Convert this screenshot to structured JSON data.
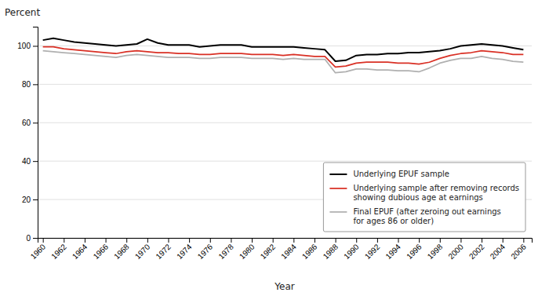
{
  "chart_data": {
    "type": "line",
    "xlabel": "Year",
    "ylabel": "Percent",
    "x": [
      1960,
      1961,
      1962,
      1963,
      1964,
      1965,
      1966,
      1967,
      1968,
      1969,
      1970,
      1971,
      1972,
      1973,
      1974,
      1975,
      1976,
      1977,
      1978,
      1979,
      1980,
      1981,
      1982,
      1983,
      1984,
      1985,
      1986,
      1987,
      1988,
      1989,
      1990,
      1991,
      1992,
      1993,
      1994,
      1995,
      1996,
      1997,
      1998,
      1999,
      2000,
      2001,
      2002,
      2003,
      2004,
      2005,
      2006
    ],
    "series": [
      {
        "name": "Underlying EPUF sample",
        "color": "#000000",
        "values": [
          103.0,
          104.0,
          103.0,
          102.0,
          101.5,
          101.0,
          100.5,
          100.0,
          100.5,
          101.0,
          103.5,
          101.5,
          100.5,
          100.5,
          100.5,
          99.5,
          100.0,
          100.5,
          100.5,
          100.5,
          99.5,
          99.5,
          99.5,
          99.5,
          99.5,
          99.0,
          98.5,
          98.0,
          92.0,
          92.5,
          95.0,
          95.5,
          95.5,
          96.0,
          96.0,
          96.5,
          96.5,
          97.0,
          97.5,
          98.5,
          100.0,
          100.5,
          101.0,
          100.5,
          100.0,
          99.0,
          98.0
        ]
      },
      {
        "name": "Underlying sample after removing records\nshowing dubious age at earnings",
        "color": "#d93025",
        "values": [
          99.5,
          99.5,
          98.5,
          98.0,
          97.5,
          97.0,
          96.5,
          96.0,
          97.0,
          97.5,
          97.0,
          96.5,
          96.5,
          96.0,
          96.0,
          95.5,
          95.5,
          96.0,
          96.0,
          96.0,
          95.5,
          95.5,
          95.5,
          95.0,
          95.5,
          95.0,
          94.5,
          94.5,
          89.0,
          89.5,
          91.0,
          91.5,
          91.5,
          91.5,
          91.0,
          91.0,
          90.5,
          91.5,
          93.5,
          95.0,
          96.0,
          96.5,
          97.5,
          97.0,
          96.5,
          95.5,
          95.5
        ]
      },
      {
        "name": "Final EPUF (after zeroing out earnings\nfor ages 86 or older)",
        "color": "#b0b0b0",
        "values": [
          97.5,
          97.0,
          96.5,
          96.0,
          95.5,
          95.0,
          94.5,
          94.0,
          95.0,
          95.5,
          95.0,
          94.5,
          94.0,
          94.0,
          94.0,
          93.5,
          93.5,
          94.0,
          94.0,
          94.0,
          93.5,
          93.5,
          93.5,
          93.0,
          93.5,
          93.0,
          93.0,
          93.0,
          86.0,
          86.5,
          88.0,
          88.0,
          87.5,
          87.5,
          87.0,
          87.0,
          86.5,
          88.5,
          91.0,
          92.5,
          93.5,
          93.5,
          94.5,
          93.5,
          93.0,
          92.0,
          91.5
        ]
      }
    ],
    "xlim": [
      1959.5,
      2006.8
    ],
    "xticks": [
      1960,
      1962,
      1964,
      1966,
      1968,
      1970,
      1972,
      1974,
      1976,
      1978,
      1980,
      1982,
      1984,
      1986,
      1988,
      1990,
      1992,
      1994,
      1996,
      1998,
      2000,
      2002,
      2004,
      2006
    ],
    "ylim": [
      0,
      110
    ],
    "yticks": [
      0,
      20,
      40,
      60,
      80,
      100
    ],
    "grid": true,
    "legend": "lower right"
  }
}
